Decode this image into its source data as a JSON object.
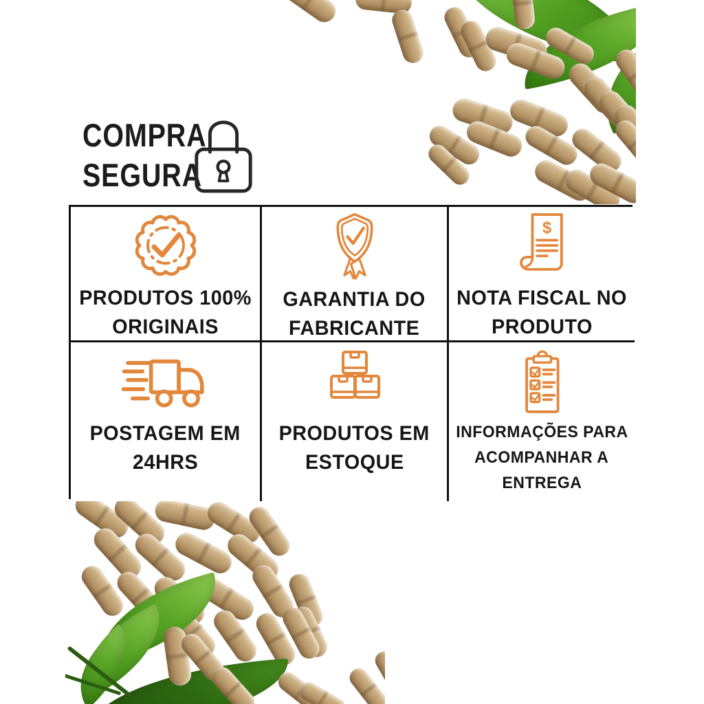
{
  "page": {
    "background": "#ffffff"
  },
  "colors": {
    "accent": "#E2873C",
    "text": "#161616",
    "border": "#111111",
    "capsule_tan": "#C2A477",
    "leaf_green": "#4E9A23"
  },
  "header": {
    "title_line1": "COMPRA",
    "title_line2": "SEGURA",
    "icon": "padlock-icon"
  },
  "grid": {
    "cells": [
      {
        "id": "produtos-originais",
        "icon": "badge-check-icon",
        "lines": [
          "PRODUTOS 100%",
          "ORIGINAIS"
        ]
      },
      {
        "id": "garantia-fabricante",
        "icon": "shield-check-icon",
        "lines": [
          "GARANTIA DO",
          "FABRICANTE"
        ]
      },
      {
        "id": "nota-fiscal",
        "icon": "invoice-icon",
        "currency_symbol": "$",
        "lines": [
          "NOTA FISCAL NO",
          "PRODUTO"
        ]
      },
      {
        "id": "postagem-24hrs",
        "icon": "delivery-truck-icon",
        "lines": [
          "POSTAGEM EM",
          "24HRS"
        ]
      },
      {
        "id": "produtos-estoque",
        "icon": "stock-boxes-icon",
        "lines": [
          "PRODUTOS EM",
          "ESTOQUE"
        ]
      },
      {
        "id": "informacoes-entrega",
        "icon": "clipboard-checklist-icon",
        "lines": [
          "INFORMAÇÕES PARA",
          "ACOMPANHAR A",
          "ENTREGA"
        ]
      }
    ]
  }
}
